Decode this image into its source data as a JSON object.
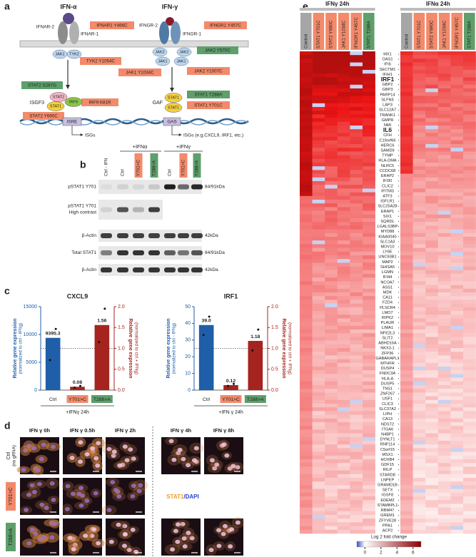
{
  "panel_labels": [
    "a",
    "b",
    "c",
    "d",
    "e"
  ],
  "pathway": {
    "ligands": [
      "IFN-α",
      "IFN-γ"
    ],
    "receptors": [
      "IFNAR-2",
      "IFNAR-1",
      "IFNGR-2",
      "IFNGR-1"
    ],
    "kinases": [
      "JAK1",
      "TYK2",
      "JAK2",
      "JAK2",
      "JAK1",
      "JAK1"
    ],
    "mutations": [
      {
        "label": "IFNAR1 Y466C",
        "color": "#f28a6b"
      },
      {
        "label": "IFNGR1 Y457C",
        "color": "#f28a6b"
      },
      {
        "label": "TYK2 Y1054C",
        "color": "#f28a6b"
      },
      {
        "label": "JAK1 Y1034C",
        "color": "#f28a6b"
      },
      {
        "label": "JAK2 Y570C",
        "color": "#5e9f6b"
      },
      {
        "label": "JAK2 Y1007C",
        "color": "#f28a6b"
      },
      {
        "label": "STAT2 S287G",
        "color": "#5e9f6b"
      },
      {
        "label": "IRF9 K81R",
        "color": "#f28a6b"
      },
      {
        "label": "STAT2 Y690C",
        "color": "#f28a6b"
      },
      {
        "label": "STAT1 T288A",
        "color": "#5e9f6b"
      },
      {
        "label": "STAT1 Y701C",
        "color": "#f28a6b"
      }
    ],
    "complexes": [
      "ISGF3",
      "GAF"
    ],
    "factors": [
      "STAT2",
      "STAT1",
      "IRF9",
      "STAT1",
      "STAT1"
    ],
    "promoters": [
      "ISRE",
      "GAS"
    ],
    "outputs": [
      "ISGs",
      "ISGs (e.g.CXCL9, IRF1, etc.)"
    ]
  },
  "western_blot": {
    "treatment_groups": [
      "+IFNα",
      "+IFNγ"
    ],
    "lanes": [
      {
        "label": "Ctrl - IFN",
        "color": "none"
      },
      {
        "label": "Ctrl",
        "color": "none"
      },
      {
        "label": "Y701>C",
        "color": "#f28a6b"
      },
      {
        "label": "T288>A",
        "color": "#5e9f6b"
      },
      {
        "label": "Ctrl",
        "color": "none"
      },
      {
        "label": "Y701>C",
        "color": "#f28a6b"
      },
      {
        "label": "T288>A",
        "color": "#5e9f6b"
      }
    ],
    "rows": [
      {
        "label": "pSTAT1 Y701",
        "size": "84/91kDa"
      },
      {
        "label": "pSTAT1 Y701",
        "sublabel": "High contrast"
      },
      {
        "label": "β-Actin",
        "size": "42kDa"
      },
      {
        "label": "Total STAT1",
        "size": "84/91kDa"
      },
      {
        "label": "β-Actin",
        "size": "42kDa"
      }
    ]
  },
  "chart_data": [
    {
      "type": "bar",
      "title": "CXCL9",
      "categories": [
        "Ctrl",
        "Y701>C",
        "T288>A"
      ],
      "category_box_colors": [
        "none",
        "#f28a6b",
        "#5e9f6b"
      ],
      "xlabel": "+IFNγ 24h",
      "ylabel": "Relative gene expression",
      "ylabel_sub": "(normalized to ctrl - IFNg)",
      "y2label": "Relative gene expression",
      "y2label_sub": "(normalized to ctrl + IFNg)",
      "ylim": [
        0,
        15000
      ],
      "yticks": [
        0,
        5000,
        10000,
        15000
      ],
      "y2lim": [
        0,
        2
      ],
      "y2ticks": [
        {
          "value": 0,
          "label": "0.0"
        },
        0.5,
        {
          "value": 1,
          "label": "1.0"
        },
        1.5,
        {
          "value": 2,
          "label": "2.0"
        }
      ],
      "y2_reference": 1,
      "series": [
        {
          "color": "#1f5ea8",
          "values": [
            9395.3,
            null,
            null
          ],
          "points": [
            [
              11000,
              5400
            ],
            null,
            null
          ]
        },
        {
          "color": "#a5241f",
          "axis": "y2",
          "values": [
            null,
            0.08,
            1.56
          ],
          "points": [
            null,
            [
              0.1,
              0.06
            ],
            [
              1.95,
              1.15
            ]
          ]
        }
      ]
    },
    {
      "type": "bar",
      "title": "IRF1",
      "categories": [
        "Ctrl",
        "Y701>C",
        "T288>A"
      ],
      "category_box_colors": [
        "none",
        "#f28a6b",
        "#5e9f6b"
      ],
      "xlabel": "+IFN γ 24h",
      "ylabel": "Relative gene expression",
      "ylabel_sub": "(normalized to ctrl - IFNg)",
      "y2label": "Relative gene expression",
      "y2label_sub": "(normalized to ctrl + IFNg)",
      "ylim": [
        0,
        50
      ],
      "yticks": [
        0,
        10,
        20,
        30,
        40,
        50
      ],
      "y2lim": [
        0,
        2
      ],
      "y2ticks": [
        {
          "value": 0,
          "label": "0.0"
        },
        0.5,
        {
          "value": 1,
          "label": "1.0"
        },
        1.5,
        {
          "value": 2,
          "label": "2.0"
        }
      ],
      "y2_reference": 1,
      "series": [
        {
          "color": "#1f5ea8",
          "values": [
            39,
            null,
            null
          ],
          "value_labels": [
            "39.0",
            null,
            null
          ],
          "points": [
            [
              44,
              33
            ],
            null,
            null
          ]
        },
        {
          "color": "#a5241f",
          "axis": "y2",
          "values": [
            null,
            0.12,
            1.18
          ],
          "points": [
            null,
            [
              0.15,
              0.1
            ],
            [
              1.45,
              0.95
            ]
          ]
        }
      ]
    }
  ],
  "microscopy": {
    "timepoints": [
      "IFN γ 0h",
      "IFN γ 0.5h",
      "IFN γ 2h",
      "IFN γ 4h",
      "IFN γ 8h"
    ],
    "rows": [
      {
        "label": "Ctrl",
        "sublabel": "(no gRNA)",
        "color": "none"
      },
      {
        "label": "Y701>C",
        "color": "#f28a6b"
      },
      {
        "label": "T288>A",
        "color": "#5e9f6b"
      }
    ],
    "stain": [
      {
        "text": "STAT1",
        "color": "#f39c1f"
      },
      {
        "text": "/DAPI",
        "color": "#2a3fd1"
      }
    ]
  },
  "heatmap": {
    "groups": [
      {
        "title": "IFNγ 24h",
        "columns": [
          "Control",
          "STAT1 Y701C",
          "STAT2 Y690C",
          "JAK1 Y1034C",
          "IFNGR1 Y457C",
          "STAT1 T288A"
        ]
      },
      {
        "title": "IFNα 24h",
        "columns": [
          "Control",
          "STAT1 Y701C",
          "STAT2 Y690C",
          "JAK1 Y1034C",
          "IFNGR1 Y457C",
          "STAT1 T288A"
        ]
      }
    ],
    "column_colors": [
      "#a6a6a6",
      "#f28a6b",
      "#f28a6b",
      "#f28a6b",
      "#f28a6b",
      "#5e9f6b"
    ],
    "genes": [
      "MX1",
      "OAS1",
      "IFI6",
      "SECTM1",
      "IFIH1",
      "IRF1",
      "GBP2",
      "GBP3",
      "PARP14",
      "SLFN5",
      "LAP3",
      "SLC12A7",
      "TRANK1",
      "GMPR",
      "NMI",
      "IL6",
      "CFH",
      "C19orf66",
      "HERC6",
      "SAMD9",
      "TYMP",
      "HLA-DMA",
      "NLRC5",
      "CCDC68",
      "ERAP2",
      "IFI30",
      "CLIC2",
      "IFITM3",
      "ATF3",
      "IGFLR1",
      "SLC25A28",
      "ERAP1",
      "SIX1",
      "SQRDL",
      "LGALS3BP",
      "MYD88",
      "KIAA0040",
      "SLC1A3",
      "MOV10",
      "LY6E",
      "UNC93B1",
      "MAP2",
      "SHISA5",
      "LGMN",
      "IFI44",
      "NCOA7",
      "ASS1",
      "MDK",
      "CA11",
      "FZD4",
      "PLSCR4",
      "LMO7",
      "RIPK2",
      "PLAUR",
      "LIMA1",
      "NFE2L3",
      "SLIT2",
      "ABHD16A",
      "NKX3-1",
      "ZFP36",
      "GABARAPL1",
      "MTHFR",
      "DUSP4",
      "FNDC3A",
      "HLA-A",
      "DUSP5",
      "TNS1",
      "ZNF267",
      "USF1",
      "CLIC3",
      "SLC37A2",
      "LIPH",
      "CA13",
      "NDST2",
      "ITGA6",
      "N4BP1",
      "DYNLT1",
      "RNF114",
      "C5orf15",
      "MSX1",
      "HOXB4",
      "GDF15",
      "RILP",
      "STARD8",
      "LNPEP",
      "GRAMD1B",
      "SETX",
      "IGSF8",
      "EDEM2",
      "STAMBPL1",
      "RBM47",
      "GREM1",
      "ZFYVE28",
      "PPA1",
      "ACP2"
    ],
    "bold_genes": [
      5,
      15
    ],
    "colorbar": {
      "label": "Log 2 fold change",
      "clim": [
        -1,
        7
      ],
      "ticks": [
        0,
        2,
        4,
        6
      ],
      "colors": [
        "#3b4cc0",
        "#ffffff",
        "#8b0000"
      ]
    }
  }
}
